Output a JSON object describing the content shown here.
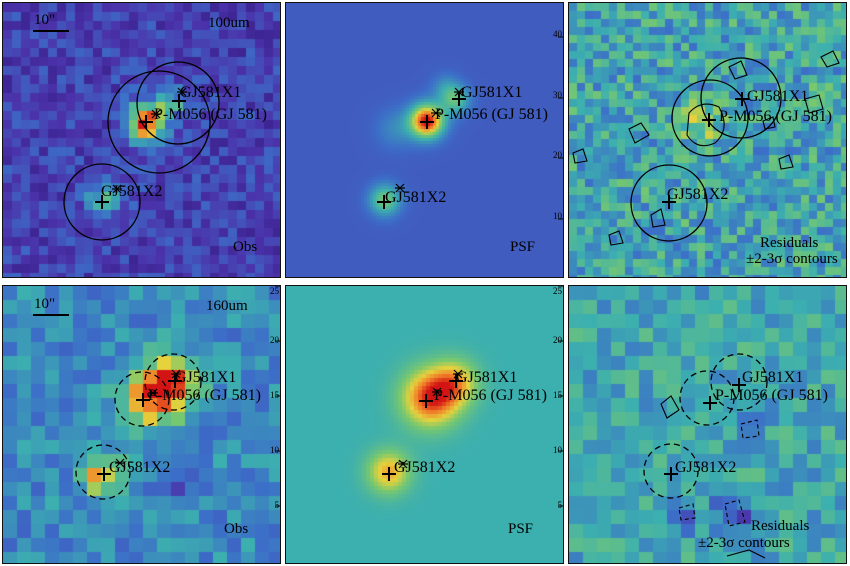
{
  "panels": [
    {
      "id": "obs-100",
      "kind": "obs",
      "band": "100um",
      "scale": "10\"",
      "corner_label": "Obs",
      "sources": [
        {
          "name": "GJ581X1"
        },
        {
          "name": "P-M056 (GJ 581)"
        },
        {
          "name": "GJ581X2"
        }
      ]
    },
    {
      "id": "psf-100",
      "kind": "psf",
      "corner_label": "PSF",
      "sources": [
        {
          "name": "GJ581X1"
        },
        {
          "name": "P-M056 (GJ 581)"
        },
        {
          "name": "GJ581X2"
        }
      ]
    },
    {
      "id": "res-100",
      "kind": "res",
      "corner_label": "Residuals",
      "corner_label2": "±2-3σ contours",
      "sources": [
        {
          "name": "GJ581X1"
        },
        {
          "name": "P-M056 (GJ 581)"
        },
        {
          "name": "GJ581X2"
        }
      ]
    },
    {
      "id": "obs-160",
      "kind": "obs",
      "band": "160um",
      "scale": "10\"",
      "corner_label": "Obs",
      "sources": [
        {
          "name": "GJ581X1"
        },
        {
          "name": "P-M056 (GJ 581)"
        },
        {
          "name": "GJ581X2"
        }
      ]
    },
    {
      "id": "psf-160",
      "kind": "psf",
      "corner_label": "PSF",
      "sources": [
        {
          "name": "GJ581X1"
        },
        {
          "name": "P-M056 (GJ 581)"
        },
        {
          "name": "GJ581X2"
        }
      ]
    },
    {
      "id": "res-160",
      "kind": "res",
      "corner_label": "Residuals",
      "corner_label2": "±2-3σ contours",
      "sources": [
        {
          "name": "GJ581X1"
        },
        {
          "name": "P-M056 (GJ 581)"
        },
        {
          "name": "GJ581X2"
        }
      ]
    }
  ],
  "axis_ticks": {
    "psf_100_y": [
      "40",
      "30",
      "20",
      "10"
    ],
    "obs_160_y": [
      "25",
      "20",
      "15",
      "10",
      "5"
    ],
    "psf_160_y": [
      "25",
      "20",
      "15",
      "10",
      "5"
    ]
  },
  "colors": {
    "map_low": "#3a1e8c",
    "map_mid": "#3bb6a8",
    "map_high": "#d71e1e",
    "frame": "#111111",
    "psf100_bg": "#3a5cc4",
    "psf160_bg": "#4fa7b4"
  }
}
